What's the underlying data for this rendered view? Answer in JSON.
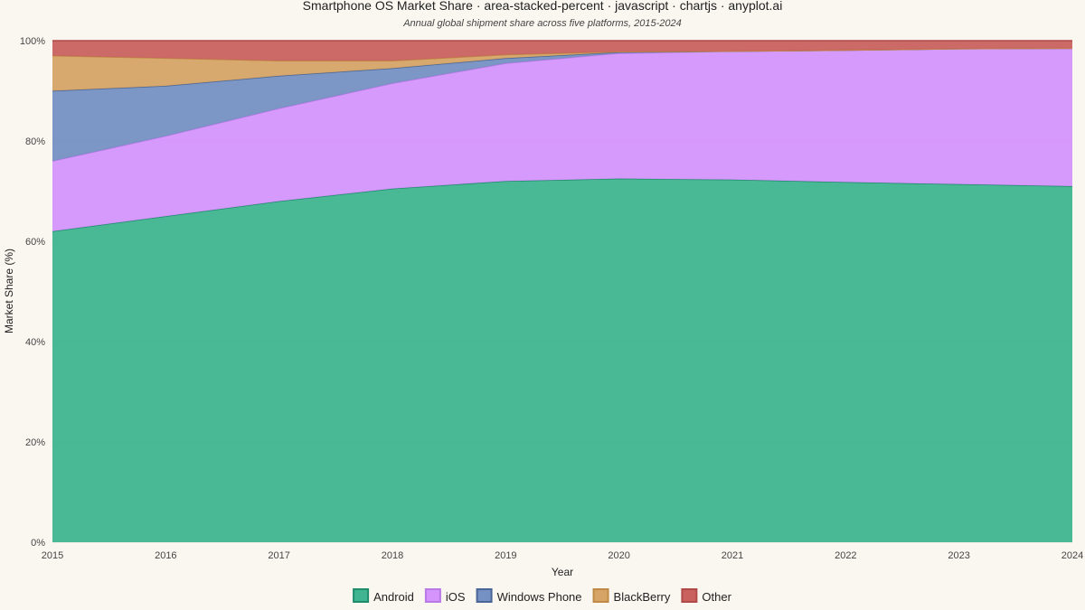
{
  "chart_data": {
    "type": "area",
    "stacked": "percent",
    "title": "Smartphone OS Market Share · area-stacked-percent · javascript · chartjs · anyplot.ai",
    "subtitle": "Annual global shipment share across five platforms, 2015-2024",
    "xlabel": "Year",
    "ylabel": "Market Share (%)",
    "x": [
      "2015",
      "2016",
      "2017",
      "2018",
      "2019",
      "2020",
      "2021",
      "2022",
      "2023",
      "2024"
    ],
    "ylim": [
      0,
      100
    ],
    "yticks": [
      "0%",
      "20%",
      "40%",
      "60%",
      "80%",
      "100%"
    ],
    "grid": true,
    "legend_position": "bottom",
    "series": [
      {
        "name": "Android",
        "color": "#3fb48f",
        "line": "#1f8c6c",
        "values": [
          62,
          65,
          68,
          70.5,
          72,
          72.5,
          72.3,
          71.8,
          71.4,
          71
        ]
      },
      {
        "name": "iOS",
        "color": "#d494fc",
        "line": "#b87ae6",
        "values": [
          14,
          16,
          18.5,
          21,
          23.5,
          25,
          25.6,
          26.3,
          27,
          27.5
        ]
      },
      {
        "name": "Windows Phone",
        "color": "#7590c2",
        "line": "#4a6596",
        "values": [
          14,
          10,
          6.5,
          3,
          1,
          0.2,
          0,
          0,
          0,
          0
        ]
      },
      {
        "name": "BlackBerry",
        "color": "#d5a466",
        "line": "#c08a45",
        "values": [
          7,
          5.5,
          3,
          1.5,
          0.7,
          0.1,
          0,
          0,
          0,
          0
        ]
      },
      {
        "name": "Other",
        "color": "#c9625f",
        "line": "#b04a48",
        "values": [
          3,
          3.5,
          4,
          4,
          2.8,
          2.2,
          2.1,
          1.9,
          1.6,
          1.5
        ]
      }
    ]
  }
}
